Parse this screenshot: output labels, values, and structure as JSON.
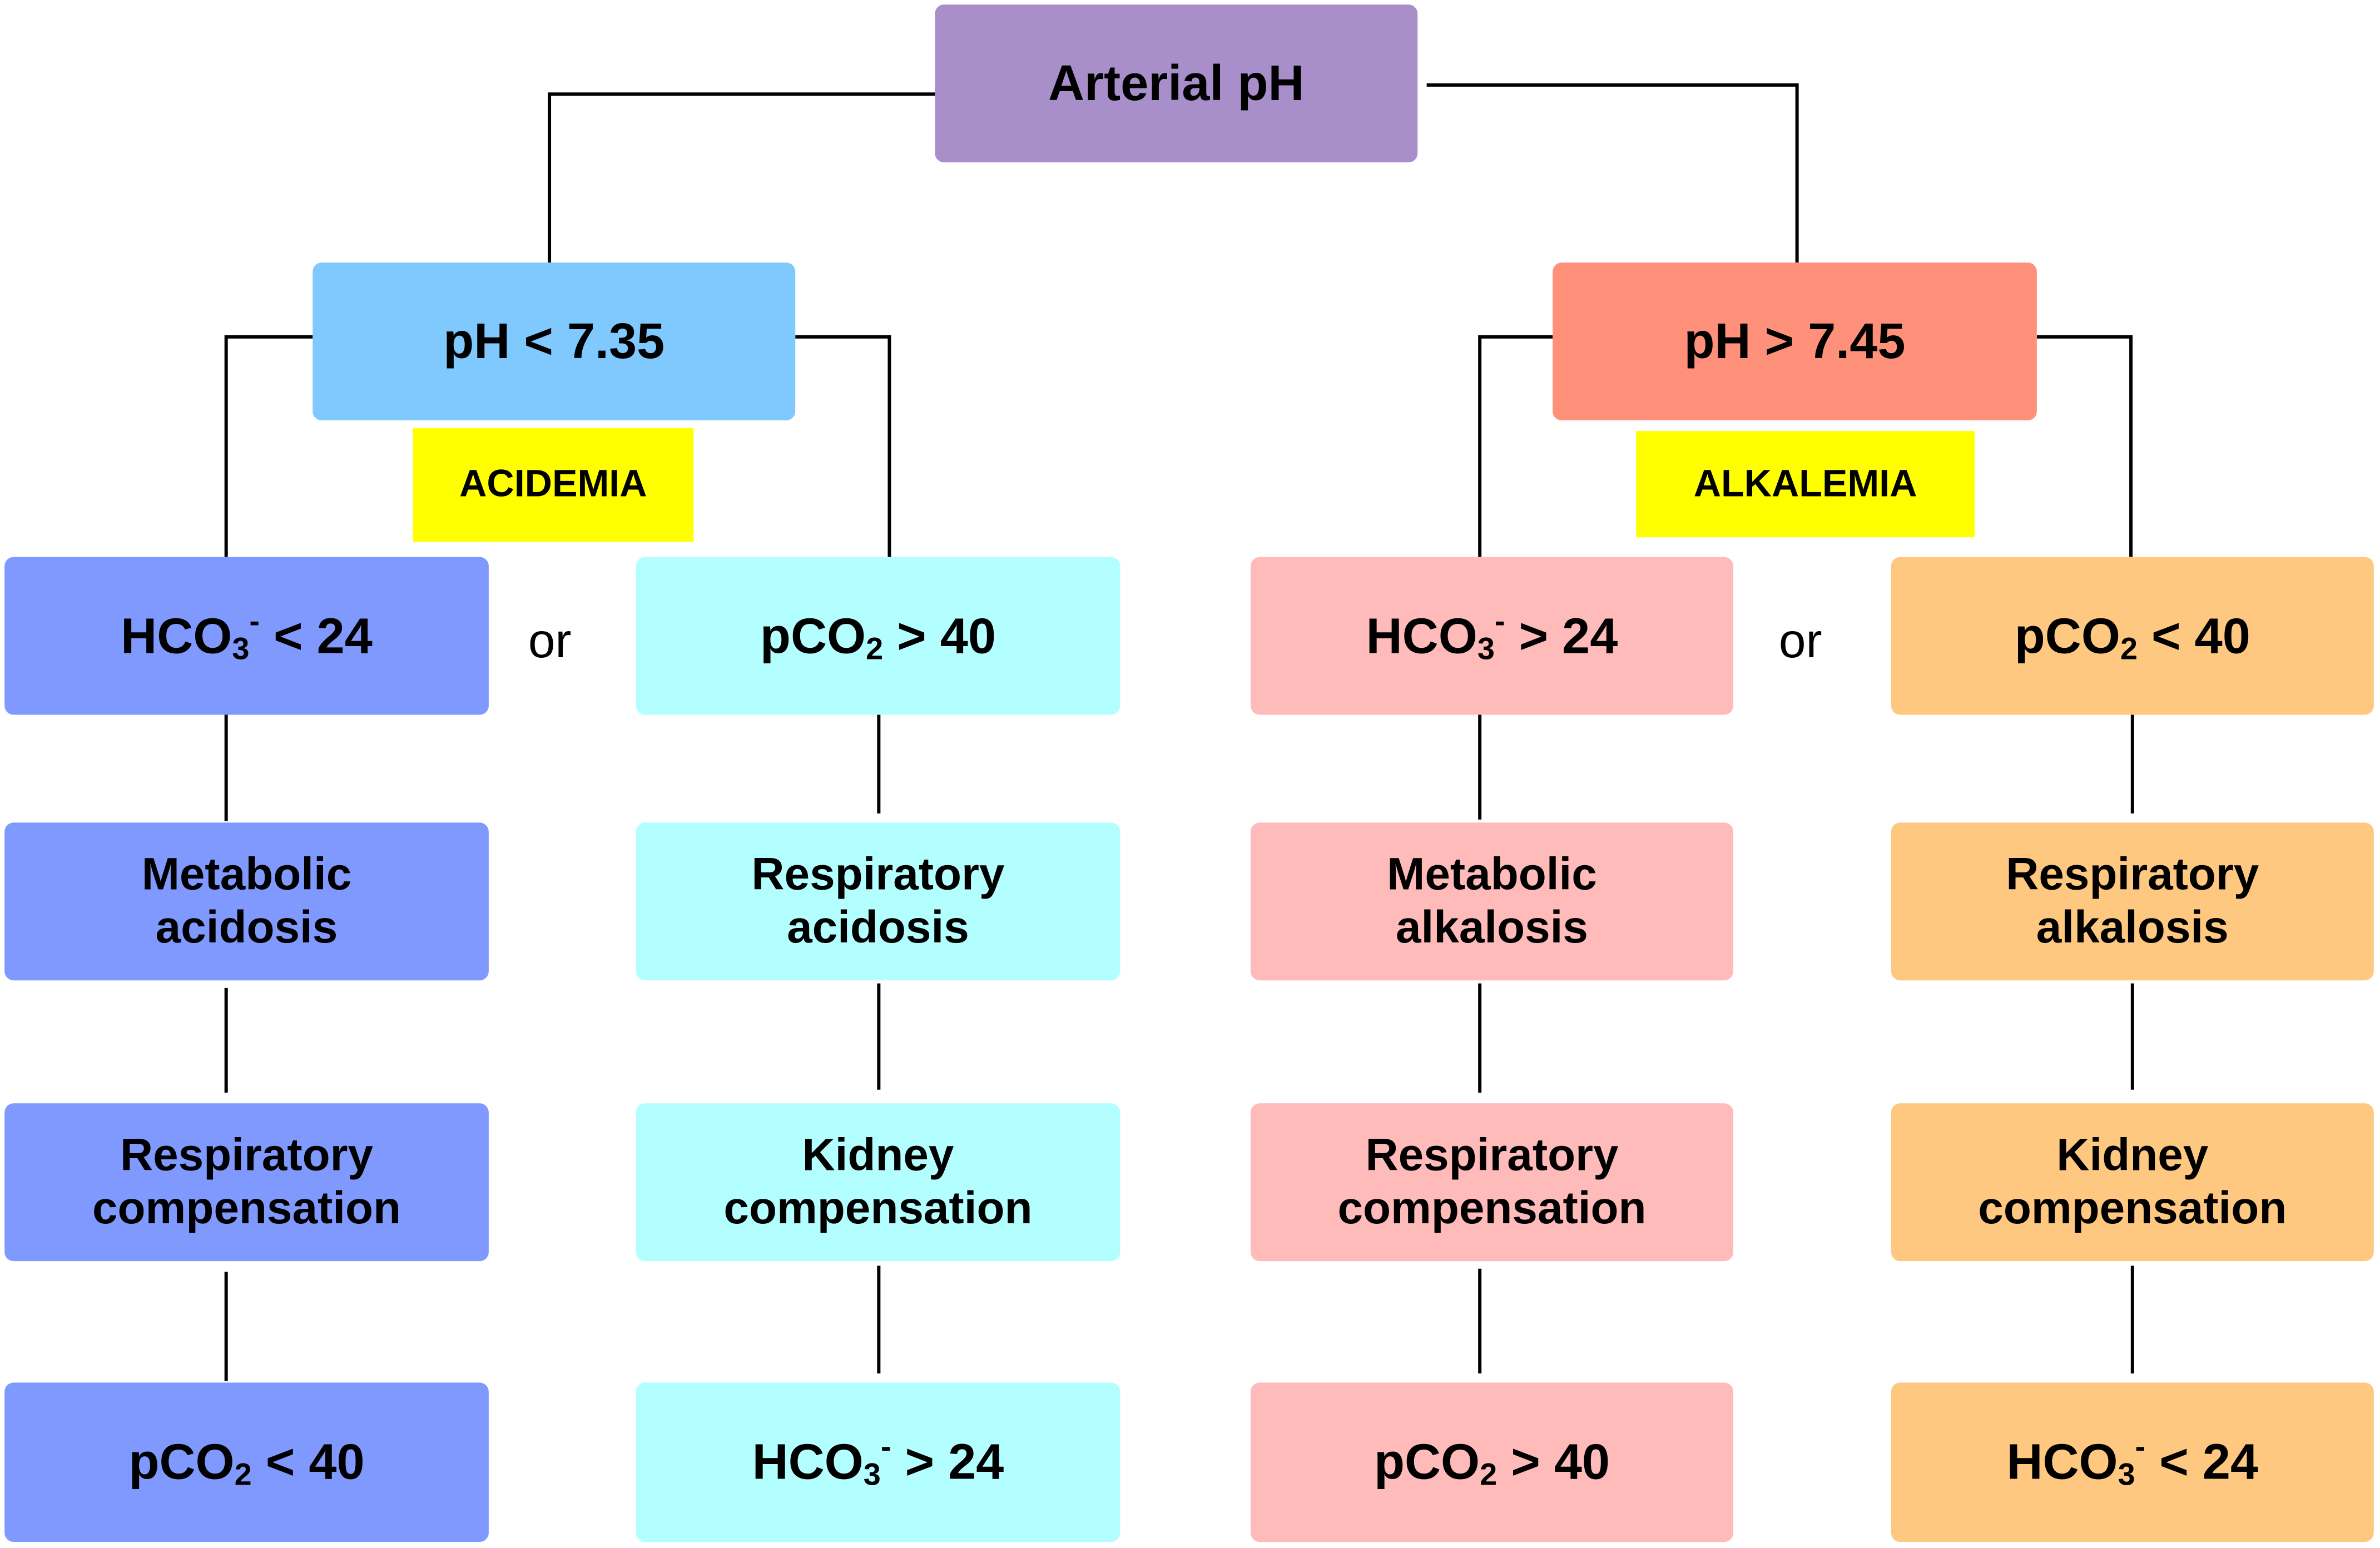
{
  "root": {
    "label": "Arterial pH"
  },
  "acid": {
    "ph": "pH < 7.35",
    "tag": "ACIDEMIA",
    "metabolic": {
      "cause_pre": "HCO",
      "cause_sub": "3",
      "cause_sup": "-",
      "cause_post": " < 24",
      "type_line1": "Metabolic",
      "type_line2": "acidosis",
      "comp_line1": "Respiratory",
      "comp_line2": "compensation",
      "result_pre": "pCO",
      "result_sub": "2",
      "result_sup": "",
      "result_post": " < 40"
    },
    "or": "or",
    "respiratory": {
      "cause_pre": "pCO",
      "cause_sub": "2",
      "cause_sup": "",
      "cause_post": " > 40",
      "type_line1": "Respiratory",
      "type_line2": "acidosis",
      "comp_line1": "Kidney",
      "comp_line2": "compensation",
      "result_pre": "HCO",
      "result_sub": "3",
      "result_sup": "-",
      "result_post": " > 24"
    }
  },
  "alk": {
    "ph": "pH > 7.45",
    "tag": "ALKALEMIA",
    "metabolic": {
      "cause_pre": "HCO",
      "cause_sub": "3",
      "cause_sup": "-",
      "cause_post": " > 24",
      "type_line1": "Metabolic",
      "type_line2": "alkalosis",
      "comp_line1": "Respiratory",
      "comp_line2": "compensation",
      "result_pre": "pCO",
      "result_sub": "2",
      "result_sup": "",
      "result_post": " > 40"
    },
    "or": "or",
    "respiratory": {
      "cause_pre": "pCO",
      "cause_sub": "2",
      "cause_sup": "",
      "cause_post": " < 40",
      "type_line1": "Respiratory",
      "type_line2": "alkalosis",
      "comp_line1": "Kidney",
      "comp_line2": "compensation",
      "result_pre": "HCO",
      "result_sub": "3",
      "result_sup": "-",
      "result_post": " < 24"
    }
  },
  "colors": {
    "root": "#a98fca",
    "acid_ph": "#7fc9fe",
    "alk_ph": "#ff917b",
    "tag": "#ffff00",
    "metabolic_acidosis": "#8099fe",
    "respiratory_acidosis": "#b3fefe",
    "metabolic_alkalosis": "#ffbaba",
    "respiratory_alkalosis": "#ffc880",
    "connector": "#000000"
  }
}
